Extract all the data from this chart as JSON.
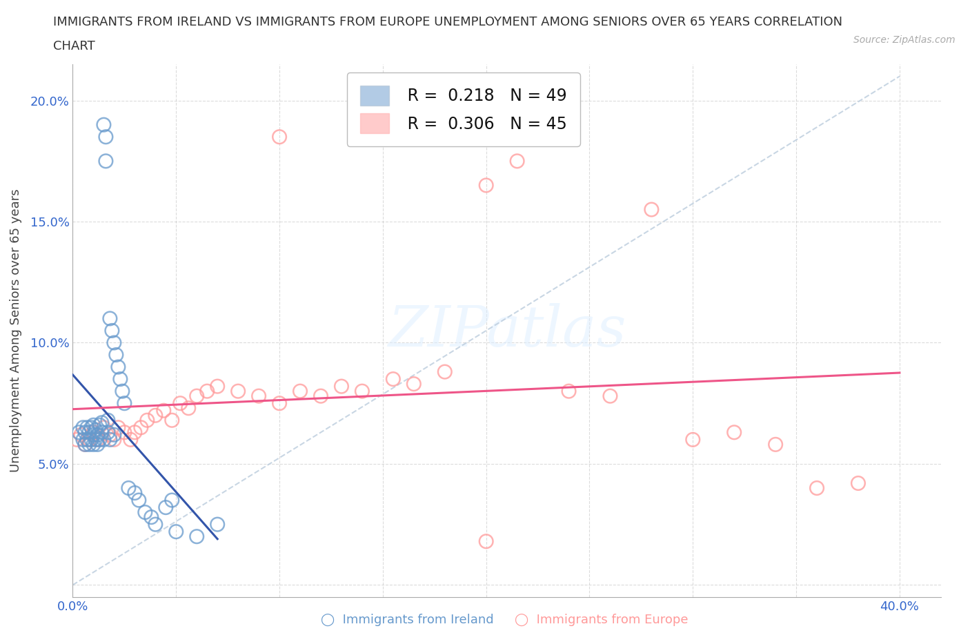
{
  "title_line1": "IMMIGRANTS FROM IRELAND VS IMMIGRANTS FROM EUROPE UNEMPLOYMENT AMONG SENIORS OVER 65 YEARS CORRELATION",
  "title_line2": "CHART",
  "source_text": "Source: ZipAtlas.com",
  "ylabel": "Unemployment Among Seniors over 65 years",
  "legend_label1": "Immigrants from Ireland",
  "legend_label2": "Immigrants from Europe",
  "R1": 0.218,
  "N1": 49,
  "R2": 0.306,
  "N2": 45,
  "xlim": [
    0.0,
    0.42
  ],
  "ylim": [
    -0.005,
    0.215
  ],
  "xtick_positions": [
    0.0,
    0.05,
    0.1,
    0.15,
    0.2,
    0.25,
    0.3,
    0.35,
    0.4
  ],
  "xticklabels": [
    "0.0%",
    "",
    "",
    "",
    "",
    "",
    "",
    "",
    "40.0%"
  ],
  "ytick_positions": [
    0.0,
    0.05,
    0.1,
    0.15,
    0.2
  ],
  "yticklabels": [
    "",
    "5.0%",
    "10.0%",
    "15.0%",
    "20.0%"
  ],
  "color_ireland": "#6699CC",
  "color_europe": "#FF9999",
  "trendline_color_ireland": "#3355AA",
  "trendline_color_europe": "#EE5588",
  "diag_color": "#BBCCDD",
  "background_color": "#FFFFFF",
  "ireland_x": [
    0.003,
    0.005,
    0.005,
    0.006,
    0.006,
    0.007,
    0.007,
    0.008,
    0.008,
    0.009,
    0.009,
    0.01,
    0.01,
    0.01,
    0.011,
    0.011,
    0.012,
    0.012,
    0.013,
    0.013,
    0.014,
    0.014,
    0.015,
    0.015,
    0.016,
    0.016,
    0.017,
    0.017,
    0.018,
    0.018,
    0.019,
    0.02,
    0.02,
    0.021,
    0.022,
    0.023,
    0.024,
    0.025,
    0.027,
    0.03,
    0.032,
    0.035,
    0.038,
    0.04,
    0.045,
    0.048,
    0.05,
    0.06,
    0.07
  ],
  "ireland_y": [
    0.063,
    0.06,
    0.065,
    0.058,
    0.063,
    0.06,
    0.065,
    0.058,
    0.063,
    0.06,
    0.065,
    0.058,
    0.062,
    0.066,
    0.06,
    0.064,
    0.058,
    0.062,
    0.06,
    0.066,
    0.063,
    0.067,
    0.06,
    0.19,
    0.185,
    0.175,
    0.063,
    0.068,
    0.06,
    0.11,
    0.105,
    0.062,
    0.1,
    0.095,
    0.09,
    0.085,
    0.08,
    0.075,
    0.04,
    0.038,
    0.035,
    0.03,
    0.028,
    0.025,
    0.032,
    0.035,
    0.022,
    0.02,
    0.025
  ],
  "europe_x": [
    0.002,
    0.004,
    0.006,
    0.008,
    0.01,
    0.012,
    0.015,
    0.018,
    0.02,
    0.022,
    0.025,
    0.028,
    0.03,
    0.033,
    0.036,
    0.04,
    0.044,
    0.048,
    0.052,
    0.056,
    0.06,
    0.065,
    0.07,
    0.08,
    0.09,
    0.1,
    0.11,
    0.12,
    0.13,
    0.14,
    0.155,
    0.165,
    0.18,
    0.2,
    0.215,
    0.24,
    0.26,
    0.28,
    0.3,
    0.32,
    0.34,
    0.36,
    0.38,
    0.1,
    0.2
  ],
  "europe_y": [
    0.06,
    0.062,
    0.058,
    0.06,
    0.063,
    0.06,
    0.065,
    0.062,
    0.06,
    0.065,
    0.063,
    0.06,
    0.063,
    0.065,
    0.068,
    0.07,
    0.072,
    0.068,
    0.075,
    0.073,
    0.078,
    0.08,
    0.082,
    0.08,
    0.078,
    0.075,
    0.08,
    0.078,
    0.082,
    0.08,
    0.085,
    0.083,
    0.088,
    0.165,
    0.175,
    0.08,
    0.078,
    0.155,
    0.06,
    0.063,
    0.058,
    0.04,
    0.042,
    0.185,
    0.018
  ]
}
